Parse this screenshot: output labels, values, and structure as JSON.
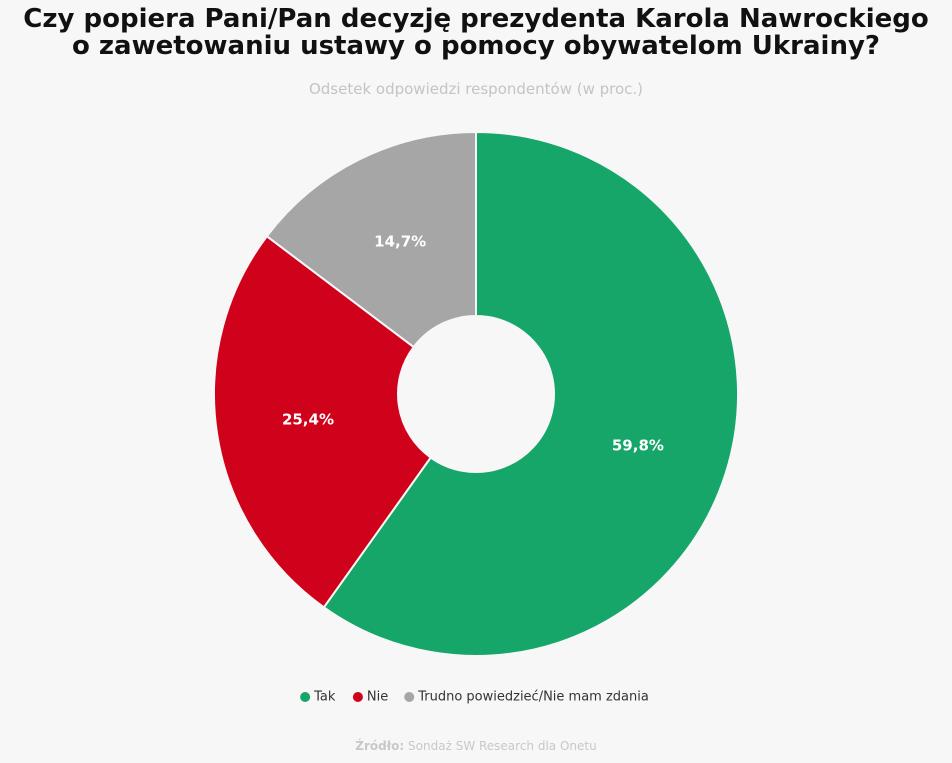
{
  "chart_data": {
    "type": "donut",
    "title": "Czy popiera Pani/Pan decyzję prezydenta Karola Nawrockiego o zawetowaniu ustawy o pomocy obywatelom Ukrainy?",
    "subtitle": "Odsetek odpowiedzi respondentów (w proc.)",
    "categories": [
      "Tak",
      "Nie",
      "Trudno powiedzieć/Nie mam zdania"
    ],
    "values": [
      59.8,
      25.4,
      14.7
    ],
    "value_labels": [
      "59,8%",
      "25,4%",
      "14,7%"
    ],
    "colors": [
      "#16a66a",
      "#d0021b",
      "#a6a6a6"
    ],
    "legend": "bottom",
    "source_label": "Źródło:",
    "source": "Sondaż SW Research dla Onetu"
  }
}
